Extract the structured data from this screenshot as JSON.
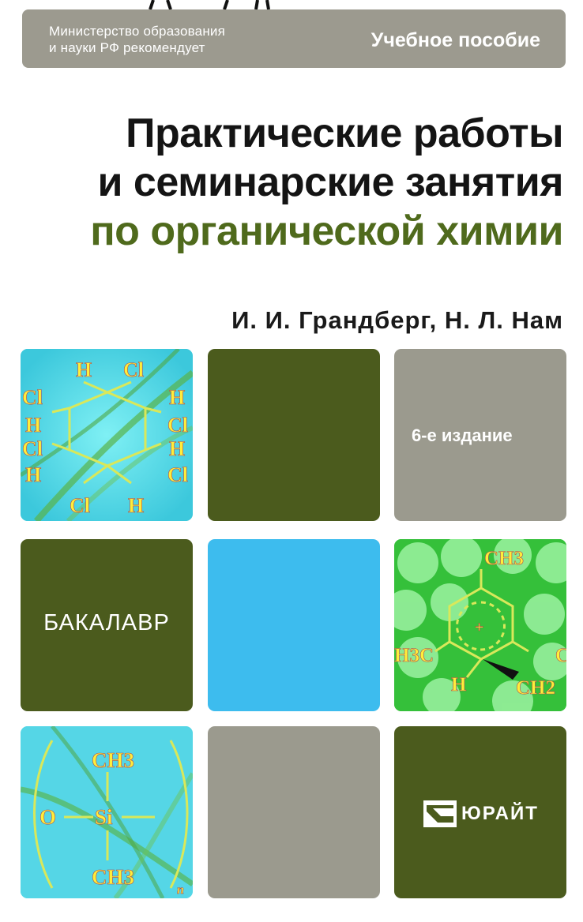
{
  "banner": {
    "recommendation_line1": "Министерство образования",
    "recommendation_line2": "и науки РФ рекомендует",
    "type": "Учебное пособие"
  },
  "title": {
    "line1": "Практические работы",
    "line2": "и семинарские занятия",
    "line3": "по органической химии"
  },
  "authors": "И. И. Грандберг, Н. Л. Нам",
  "edition": "6-е издание",
  "series": "БАКАЛАВР",
  "publisher": "ЮРАЙТ",
  "formula1": {
    "top": [
      "H",
      "Cl"
    ],
    "left": [
      "Cl",
      "H",
      "Cl",
      "H"
    ],
    "right": [
      "H",
      "Cl",
      "H",
      "Cl"
    ],
    "bottom": [
      "Cl",
      "H"
    ]
  },
  "formula2": {
    "top": "CH3",
    "left": "H3C",
    "right": "C",
    "bottom_left": "H",
    "bottom_right": "CH2",
    "charge": "+"
  },
  "formula3": {
    "top": "CH3",
    "o": "O",
    "si": "Si",
    "bottom": "CH3",
    "n": "n"
  },
  "colors": {
    "banner_gray": "#9c9a8f",
    "dark_green": "#4b5b1d",
    "title_green": "#4f6a1c",
    "cyan": "#3dbcee",
    "chem_cyan": "#57dde9",
    "formula_yellow": "#ffee3a"
  }
}
